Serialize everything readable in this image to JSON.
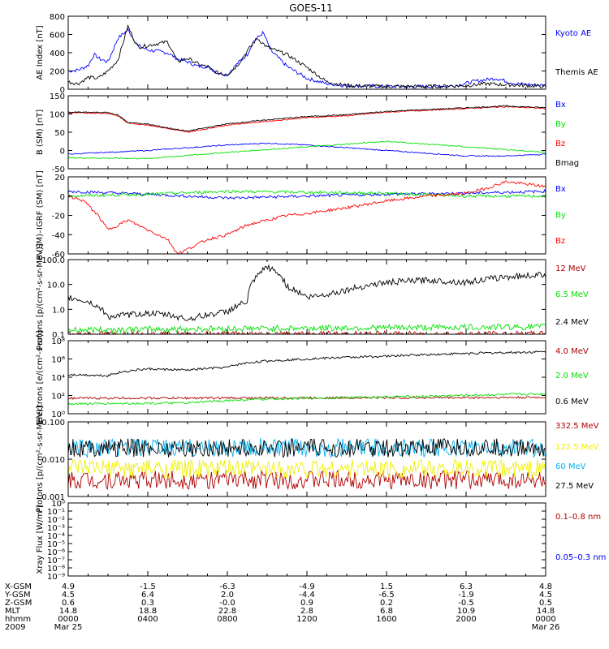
{
  "title": "GOES-11",
  "colors": {
    "black": "#000000",
    "blue": "#0000ff",
    "green": "#00e000",
    "red": "#ff0000",
    "darkred": "#b00000",
    "yellow": "#f0f000",
    "cyan": "#00b0f0"
  },
  "chart_data": [
    {
      "id": "ae",
      "type": "line",
      "ylabel": "AE Index [nT]",
      "ylim": [
        0,
        800
      ],
      "yticks": [
        "0",
        "200",
        "400",
        "600",
        "800"
      ],
      "series": [
        {
          "name": "Kyoto AE",
          "color": "blue",
          "x": [
            0,
            0.5,
            1,
            1.3,
            1.6,
            2,
            2.5,
            3,
            3.5,
            4,
            5,
            5.5,
            6,
            6.5,
            7,
            7.5,
            8,
            8.5,
            9,
            9.3,
            9.8,
            10.2,
            11,
            12,
            13,
            14,
            16,
            18,
            19.5,
            20.5,
            21.5,
            22.5,
            24
          ],
          "values": [
            200,
            210,
            260,
            380,
            330,
            300,
            560,
            650,
            480,
            430,
            400,
            330,
            300,
            250,
            250,
            180,
            160,
            280,
            380,
            520,
            620,
            420,
            250,
            120,
            60,
            40,
            30,
            30,
            40,
            90,
            120,
            60,
            40
          ]
        },
        {
          "name": "Themis AE",
          "color": "black",
          "x": [
            0,
            0.5,
            1,
            1.5,
            2,
            2.5,
            3,
            3.5,
            4,
            5,
            5.5,
            6,
            6.5,
            7,
            7.5,
            8,
            8.5,
            9,
            9.5,
            10,
            11,
            12,
            13,
            14,
            16,
            18,
            20,
            21,
            22,
            24
          ],
          "values": [
            80,
            60,
            130,
            120,
            200,
            320,
            690,
            460,
            480,
            520,
            300,
            340,
            280,
            240,
            180,
            160,
            260,
            420,
            560,
            460,
            380,
            240,
            80,
            40,
            30,
            30,
            40,
            60,
            50,
            30
          ]
        }
      ]
    },
    {
      "id": "b_sm",
      "type": "line",
      "ylabel": "B (SM) [nT]",
      "ylim": [
        -50,
        150
      ],
      "yticks": [
        "-50",
        "0",
        "50",
        "100",
        "150"
      ],
      "series": [
        {
          "name": "Bx",
          "color": "blue",
          "x": [
            0,
            4,
            8,
            10,
            12,
            16,
            20,
            22,
            24
          ],
          "values": [
            -10,
            0,
            15,
            20,
            15,
            0,
            -15,
            -15,
            -10
          ]
        },
        {
          "name": "By",
          "color": "green",
          "x": [
            0,
            4,
            8,
            12,
            16,
            20,
            24
          ],
          "values": [
            -20,
            -22,
            -5,
            10,
            25,
            10,
            -5
          ]
        },
        {
          "name": "Bz",
          "color": "red",
          "x": [
            0,
            2,
            2.5,
            3,
            4,
            5,
            6,
            7,
            8,
            10,
            12,
            14,
            16,
            18,
            20,
            22,
            24
          ],
          "values": [
            103,
            102,
            95,
            75,
            70,
            60,
            50,
            60,
            70,
            80,
            90,
            95,
            105,
            110,
            115,
            120,
            115
          ]
        },
        {
          "name": "Bmag",
          "color": "black",
          "x": [
            0,
            2,
            2.5,
            3,
            4,
            5,
            6,
            7,
            8,
            10,
            12,
            14,
            16,
            18,
            20,
            22,
            24
          ],
          "values": [
            105,
            104,
            97,
            77,
            72,
            62,
            53,
            63,
            73,
            84,
            93,
            98,
            107,
            112,
            117,
            122,
            117
          ]
        }
      ]
    },
    {
      "id": "b_igrf",
      "type": "line",
      "ylabel": "B (SM)–IGRF (SM) [nT]",
      "ylim": [
        -60,
        20
      ],
      "yticks": [
        "-60",
        "-40",
        "-20",
        "0",
        "20"
      ],
      "series": [
        {
          "name": "Bx",
          "color": "blue",
          "x": [
            0,
            4,
            8,
            12,
            16,
            20,
            24
          ],
          "values": [
            5,
            2,
            -2,
            0,
            2,
            3,
            5
          ]
        },
        {
          "name": "By",
          "color": "green",
          "x": [
            0,
            4,
            8,
            12,
            16,
            20,
            24
          ],
          "values": [
            0,
            2,
            5,
            4,
            3,
            0,
            0
          ]
        },
        {
          "name": "Bz",
          "color": "red",
          "x": [
            0,
            0.8,
            1.5,
            2,
            2.5,
            3,
            4,
            5,
            5.5,
            6,
            7,
            8,
            9,
            10,
            11,
            12,
            14,
            16,
            18,
            20,
            21,
            22,
            24
          ],
          "values": [
            0,
            -5,
            -20,
            -35,
            -30,
            -25,
            -35,
            -45,
            -60,
            -55,
            -45,
            -40,
            -30,
            -25,
            -20,
            -18,
            -12,
            -5,
            0,
            3,
            8,
            15,
            10
          ]
        }
      ]
    },
    {
      "id": "protons_low",
      "type": "line",
      "yscale": "log",
      "ylabel": "Protons [p/(cm²-s-sr-MeV)]",
      "ylim": [
        0.1,
        100
      ],
      "yticks": [
        "0.1",
        "1.0",
        "10.0",
        "100.0"
      ],
      "series": [
        {
          "name": "12 MeV",
          "color": "darkred",
          "x": [
            0,
            24
          ],
          "values": [
            0.1,
            0.1
          ]
        },
        {
          "name": "6.5 MeV",
          "color": "green",
          "x": [
            0,
            24
          ],
          "values": [
            0.15,
            0.2
          ]
        },
        {
          "name": "2.4 MeV",
          "color": "black",
          "x": [
            0,
            1,
            2,
            3,
            4,
            5,
            6,
            7,
            8,
            9,
            9.5,
            10,
            11,
            12,
            13,
            14,
            16,
            18,
            20,
            22,
            24
          ],
          "values": [
            3,
            2,
            0.5,
            0.6,
            0.7,
            0.6,
            0.4,
            0.6,
            0.8,
            2,
            20,
            50,
            8,
            3,
            4,
            6,
            12,
            15,
            12,
            20,
            25
          ]
        }
      ]
    },
    {
      "id": "electrons",
      "type": "line",
      "yscale": "log",
      "ylabel": "Electrons [e/(cm²-s-sr)]",
      "ylim": [
        1,
        100000000
      ],
      "yticks": [
        "10⁰",
        "10²",
        "10⁴",
        "10⁶",
        "10⁸"
      ],
      "series": [
        {
          "name": "4.0 MeV",
          "color": "darkred",
          "x": [
            0,
            24
          ],
          "values": [
            50,
            60
          ]
        },
        {
          "name": "2.0 MeV",
          "color": "green",
          "x": [
            0,
            6,
            10,
            14,
            18,
            24
          ],
          "values": [
            12,
            15,
            40,
            60,
            80,
            150
          ]
        },
        {
          "name": "0.6 MeV",
          "color": "black",
          "x": [
            0,
            2,
            4,
            6,
            8,
            10,
            12,
            14,
            16,
            18,
            20,
            22,
            24
          ],
          "values": [
            20000,
            15000,
            80000,
            60000,
            120000,
            600000,
            1000000,
            1500000,
            2000000,
            3000000,
            4000000,
            5000000,
            6000000
          ]
        }
      ]
    },
    {
      "id": "protons_high",
      "type": "line",
      "yscale": "log",
      "ylabel": "Protons [p/(cm²-s-sr-MeV)]",
      "ylim": [
        0.001,
        0.1
      ],
      "yticks": [
        "0.001",
        "0.010",
        "0.100"
      ],
      "series": [
        {
          "name": "332.5 MeV",
          "color": "darkred",
          "x": [
            0,
            24
          ],
          "values": [
            0.0028,
            0.0028
          ]
        },
        {
          "name": "122.5 MeV",
          "color": "yellow",
          "x": [
            0,
            24
          ],
          "values": [
            0.0055,
            0.0055
          ]
        },
        {
          "name": "60 MeV",
          "color": "cyan",
          "x": [
            0,
            24
          ],
          "values": [
            0.02,
            0.02
          ]
        },
        {
          "name": "27.5 MeV",
          "color": "black",
          "x": [
            0,
            24
          ],
          "values": [
            0.02,
            0.02
          ]
        }
      ]
    },
    {
      "id": "xray",
      "type": "line",
      "yscale": "log",
      "ylabel": "Xray Flux [W/m²]",
      "ylim": [
        1e-09,
        1
      ],
      "yticks": [
        "10⁻⁹",
        "10⁻⁸",
        "10⁻⁷",
        "10⁻⁶",
        "10⁻⁵",
        "10⁻⁴",
        "10⁻³",
        "10⁻²",
        "10⁻¹",
        "10⁰"
      ],
      "series": [
        {
          "name": "0.1–0.8 nm",
          "color": "darkred",
          "x": [],
          "values": []
        },
        {
          "name": "0.05–0.3 nm",
          "color": "blue",
          "x": [],
          "values": []
        }
      ]
    }
  ],
  "x_axis": {
    "row_labels": [
      "X-GSM",
      "Y-GSM",
      "Z-GSM",
      "MLT",
      "hhmm",
      "2009"
    ],
    "columns": [
      [
        "4.9",
        "4.5",
        "0.6",
        "14.8",
        "0000",
        "Mar 25"
      ],
      [
        "-1.5",
        "6.4",
        "0.3",
        "18.8",
        "0400",
        ""
      ],
      [
        "-6.3",
        "2.0",
        "-0.0",
        "22.8",
        "0800",
        ""
      ],
      [
        "-4.9",
        "-4.4",
        "0.9",
        "2.8",
        "1200",
        ""
      ],
      [
        "1.5",
        "-6.5",
        "0.2",
        "6.8",
        "1600",
        ""
      ],
      [
        "6.3",
        "-1.9",
        "-0.5",
        "10.9",
        "2000",
        ""
      ],
      [
        "4.8",
        "4.5",
        "0.5",
        "14.8",
        "0000",
        "Mar 26"
      ]
    ]
  }
}
